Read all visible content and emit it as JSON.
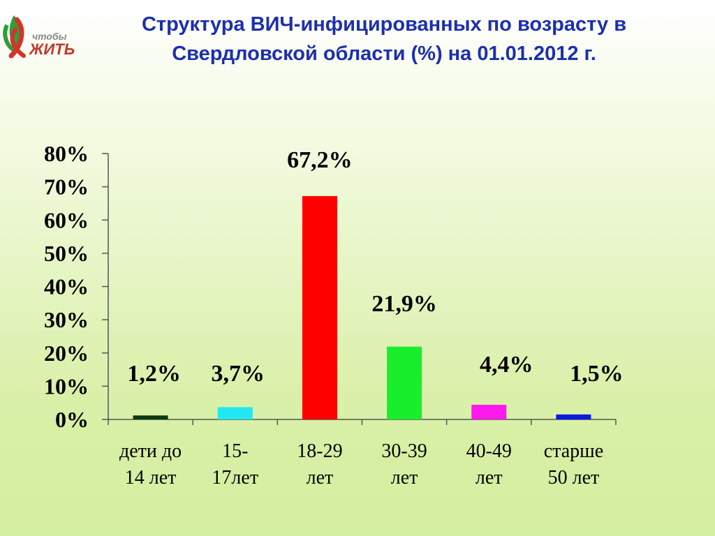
{
  "logo": {
    "small": "чтобы",
    "big": "ЖИТЬ"
  },
  "chart_data": {
    "type": "bar",
    "title": "Структура ВИЧ-инфицированных по возрасту в Свердловской области  (%) на 01.01.2012 г.",
    "categories": [
      [
        "дети до",
        "14 лет"
      ],
      [
        "15-",
        "17лет"
      ],
      [
        "18-29",
        "лет"
      ],
      [
        "30-39",
        "лет"
      ],
      [
        "40-49",
        "лет"
      ],
      [
        "старше",
        "50 лет"
      ]
    ],
    "values": [
      1.2,
      3.7,
      67.2,
      21.9,
      4.4,
      1.5
    ],
    "value_labels": [
      "1,2%",
      "3,7%",
      "67,2%",
      "21,9%",
      "4,4%",
      "1,5%"
    ],
    "colors": [
      "#0b3a10",
      "#22e8f2",
      "#ff0000",
      "#19ee2a",
      "#ff19ee",
      "#0a1be0"
    ],
    "ylim": [
      0,
      80
    ],
    "yticks": [
      0,
      10,
      20,
      30,
      40,
      50,
      60,
      70,
      80
    ],
    "ytick_labels": [
      "0%",
      "10%",
      "20%",
      "30%",
      "40%",
      "50%",
      "60%",
      "70%",
      "80%"
    ],
    "xlabel": "",
    "ylabel": "",
    "grid": false,
    "legend": "none"
  }
}
